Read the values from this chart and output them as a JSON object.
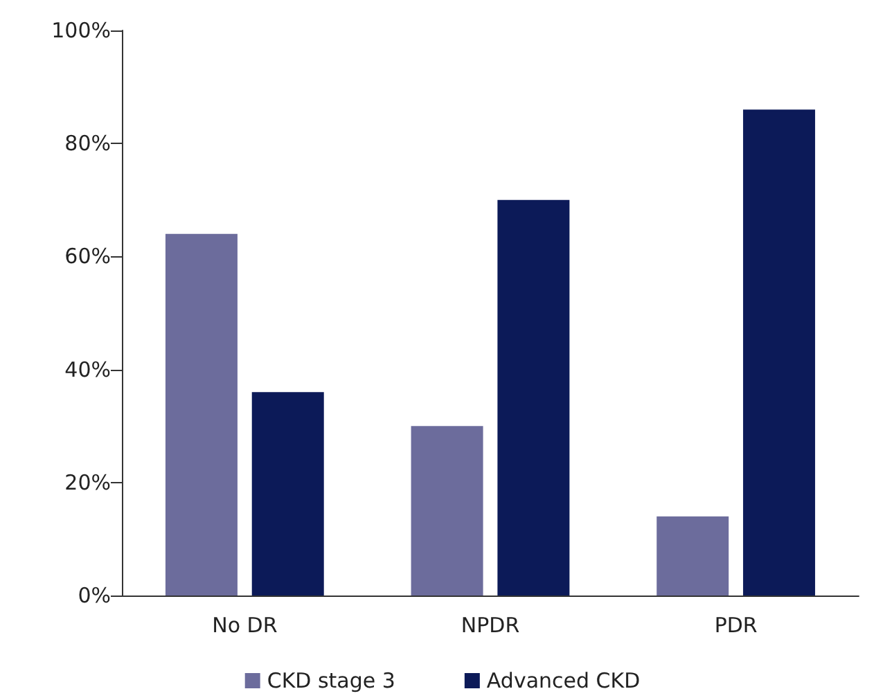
{
  "chart_data": {
    "type": "bar",
    "categories": [
      "No DR",
      "NPDR",
      "PDR"
    ],
    "series": [
      {
        "name": "CKD stage 3",
        "color": "#6c6c9c",
        "values": [
          64,
          30,
          14
        ]
      },
      {
        "name": "Advanced CKD",
        "color": "#0c1a58",
        "values": [
          36,
          70,
          86
        ]
      }
    ],
    "ylim": [
      0,
      100
    ],
    "yticks": [
      {
        "value": 0,
        "label": "0%"
      },
      {
        "value": 20,
        "label": "20%"
      },
      {
        "value": 40,
        "label": "40%"
      },
      {
        "value": 60,
        "label": "60%"
      },
      {
        "value": 80,
        "label": "80%"
      },
      {
        "value": 100,
        "label": "100%"
      }
    ],
    "grid": false,
    "legend": "bottom"
  }
}
